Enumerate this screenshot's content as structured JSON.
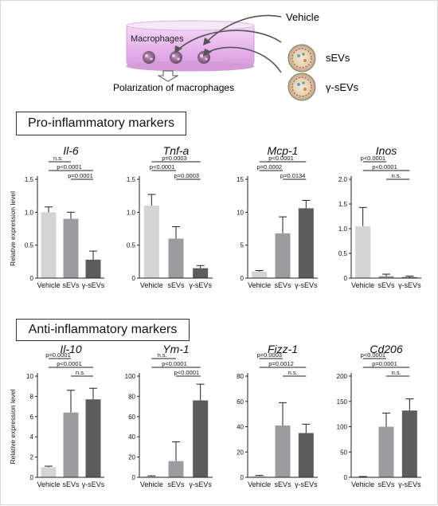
{
  "schematic": {
    "dish_label": "Macrophages",
    "arrow_label": "Polarization of macrophages",
    "treatments": [
      "Vehicle",
      "sEVs",
      "γ-sEVs"
    ]
  },
  "sections": {
    "pro_title": "Pro-inflammatory markers",
    "anti_title": "Anti-inflammatory markers"
  },
  "y_axis_label": "Relative expression level",
  "colors": {
    "vehicle": "#d4d4d4",
    "sevs": "#9c9ca0",
    "gamma_sevs": "#5c5c5c",
    "dish": "#e9b9ec",
    "axis": "#222222"
  },
  "chart_data": [
    {
      "type": "bar",
      "title": "Il-6",
      "row": "pro",
      "categories": [
        "Vehicle",
        "sEVs",
        "γ-sEVs"
      ],
      "values": [
        1.0,
        0.9,
        0.28
      ],
      "errors": [
        0.08,
        0.1,
        0.13
      ],
      "ylim": [
        0,
        1.5
      ],
      "yticks": [
        "0",
        "0.5",
        "1.0",
        "1.5"
      ],
      "ytick_values": [
        0,
        0.5,
        1.0,
        1.5
      ],
      "ylabel": "Relative expression level",
      "comparisons": [
        {
          "from": 0,
          "to": 1,
          "label": "n.s."
        },
        {
          "from": 0,
          "to": 2,
          "label": "p<0.0001"
        },
        {
          "from": 1,
          "to": 2,
          "label": "p=0.0001"
        }
      ]
    },
    {
      "type": "bar",
      "title": "Tnf-a",
      "row": "pro",
      "categories": [
        "Vehicle",
        "sEVs",
        "γ-sEVs"
      ],
      "values": [
        1.1,
        0.6,
        0.15
      ],
      "errors": [
        0.17,
        0.18,
        0.04
      ],
      "ylim": [
        0,
        1.5
      ],
      "yticks": [
        "0",
        "0.5",
        "1.0",
        "1.5"
      ],
      "ytick_values": [
        0,
        0.5,
        1.0,
        1.5
      ],
      "ylabel": "",
      "comparisons": [
        {
          "from": 0,
          "to": 2,
          "label": "p=0.0003"
        },
        {
          "from": 0,
          "to": 1,
          "label": "p<0.0001"
        },
        {
          "from": 1,
          "to": 2,
          "label": "p=0.0003"
        }
      ]
    },
    {
      "type": "bar",
      "title": "Mcp-1",
      "row": "pro",
      "categories": [
        "Vehicle",
        "sEVs",
        "γ-sEVs"
      ],
      "values": [
        1.0,
        6.8,
        10.6
      ],
      "errors": [
        0.15,
        2.5,
        1.2
      ],
      "ylim": [
        0,
        15
      ],
      "yticks": [
        "0",
        "5",
        "10",
        "15"
      ],
      "ytick_values": [
        0,
        5,
        10,
        15
      ],
      "ylabel": "",
      "comparisons": [
        {
          "from": 0,
          "to": 2,
          "label": "p<0.0001"
        },
        {
          "from": 0,
          "to": 1,
          "label": "p=0.0002"
        },
        {
          "from": 1,
          "to": 2,
          "label": "p=0.0134"
        }
      ]
    },
    {
      "type": "bar",
      "title": "Inos",
      "row": "pro",
      "categories": [
        "Vehicle",
        "sEVs",
        "γ-sEVs"
      ],
      "values": [
        1.05,
        0.04,
        0.02
      ],
      "errors": [
        0.38,
        0.04,
        0.02
      ],
      "ylim": [
        0,
        2.0
      ],
      "yticks": [
        "0",
        "0.5",
        "1.0",
        "1.5",
        "2.0"
      ],
      "ytick_values": [
        0,
        0.5,
        1.0,
        1.5,
        2.0
      ],
      "ylabel": "",
      "comparisons": [
        {
          "from": 0,
          "to": 1,
          "label": "p<0.0001"
        },
        {
          "from": 0,
          "to": 2,
          "label": "p<0.0001"
        },
        {
          "from": 1,
          "to": 2,
          "label": "n.s."
        }
      ]
    },
    {
      "type": "bar",
      "title": "Il-10",
      "row": "anti",
      "categories": [
        "Vehicle",
        "sEVs",
        "γ-sEVs"
      ],
      "values": [
        1.0,
        6.4,
        7.7
      ],
      "errors": [
        0.1,
        2.2,
        1.1
      ],
      "ylim": [
        0,
        10
      ],
      "yticks": [
        "0",
        "2",
        "4",
        "6",
        "8",
        "10"
      ],
      "ytick_values": [
        0,
        2,
        4,
        6,
        8,
        10
      ],
      "ylabel": "Relative expression level",
      "comparisons": [
        {
          "from": 0,
          "to": 1,
          "label": "p=0.0001"
        },
        {
          "from": 0,
          "to": 2,
          "label": "p<0.0001"
        },
        {
          "from": 1,
          "to": 2,
          "label": "n.s."
        }
      ]
    },
    {
      "type": "bar",
      "title": "Ym-1",
      "row": "anti",
      "categories": [
        "Vehicle",
        "sEVs",
        "γ-sEVs"
      ],
      "values": [
        1.0,
        16,
        76
      ],
      "errors": [
        0.5,
        19,
        16
      ],
      "ylim": [
        0,
        100
      ],
      "yticks": [
        "0",
        "20",
        "40",
        "60",
        "80",
        "100"
      ],
      "ytick_values": [
        0,
        20,
        40,
        60,
        80,
        100
      ],
      "ylabel": "",
      "comparisons": [
        {
          "from": 0,
          "to": 1,
          "label": "n.s."
        },
        {
          "from": 0,
          "to": 2,
          "label": "p<0.0001"
        },
        {
          "from": 1,
          "to": 2,
          "label": "p<0.0001"
        }
      ]
    },
    {
      "type": "bar",
      "title": "Fizz-1",
      "row": "anti",
      "categories": [
        "Vehicle",
        "sEVs",
        "γ-sEVs"
      ],
      "values": [
        1.0,
        41,
        35
      ],
      "errors": [
        0.5,
        18,
        7
      ],
      "ylim": [
        0,
        80
      ],
      "yticks": [
        "0",
        "20",
        "40",
        "60",
        "80"
      ],
      "ytick_values": [
        0,
        20,
        40,
        60,
        80
      ],
      "ylabel": "",
      "comparisons": [
        {
          "from": 0,
          "to": 1,
          "label": "p=0.0003"
        },
        {
          "from": 0,
          "to": 2,
          "label": "p=0.0012"
        },
        {
          "from": 1,
          "to": 2,
          "label": "n.s."
        }
      ]
    },
    {
      "type": "bar",
      "title": "Cd206",
      "row": "anti",
      "categories": [
        "Vehicle",
        "sEVs",
        "γ-sEVs"
      ],
      "values": [
        1.0,
        100,
        132
      ],
      "errors": [
        0.5,
        27,
        23
      ],
      "ylim": [
        0,
        200
      ],
      "yticks": [
        "0",
        "50",
        "100",
        "150",
        "200"
      ],
      "ytick_values": [
        0,
        50,
        100,
        150,
        200
      ],
      "ylabel": "",
      "comparisons": [
        {
          "from": 0,
          "to": 1,
          "label": "p<0.0001"
        },
        {
          "from": 0,
          "to": 2,
          "label": "p=0.0001"
        },
        {
          "from": 1,
          "to": 2,
          "label": "n.s."
        }
      ]
    }
  ]
}
